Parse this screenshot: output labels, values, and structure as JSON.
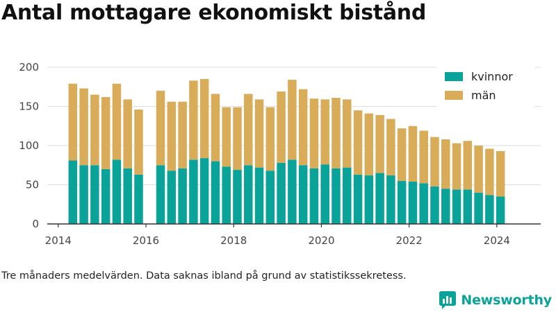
{
  "page": {
    "title": "Antal mottagare ekonomiskt bistånd",
    "caption": "Tre månaders medelvärden. Data saknas ibland på grund av statistikssekretess.",
    "brand": "Newsworthy"
  },
  "colors": {
    "kvinnor": "#0aa39a",
    "man": "#d9ac5a",
    "grid": "#dddddd",
    "axis": "#333333",
    "brand": "#0aa39a"
  },
  "icons": {
    "brand_logo": "bar-chart-speech-bubble-icon"
  },
  "chart_data": {
    "type": "bar",
    "stacked": true,
    "title": "Antal mottagare ekonomiskt bistånd",
    "xlabel": "",
    "ylabel": "",
    "ylim": [
      0,
      200
    ],
    "xlim": [
      "2013-10",
      "2025-01"
    ],
    "yticks": [
      0,
      50,
      100,
      150,
      200
    ],
    "xticks": [
      "2014",
      "2016",
      "2018",
      "2020",
      "2022",
      "2024"
    ],
    "grid": true,
    "legend_position": "top-right",
    "categories": [
      "2014-05",
      "2014-08",
      "2014-11",
      "2015-02",
      "2015-05",
      "2015-08",
      "2015-11",
      "2016-05",
      "2016-08",
      "2016-11",
      "2017-02",
      "2017-05",
      "2017-08",
      "2017-11",
      "2018-02",
      "2018-05",
      "2018-08",
      "2018-11",
      "2019-02",
      "2019-05",
      "2019-08",
      "2019-11",
      "2020-02",
      "2020-05",
      "2020-08",
      "2020-11",
      "2021-02",
      "2021-05",
      "2021-08",
      "2021-11",
      "2022-02",
      "2022-05",
      "2022-08",
      "2022-11",
      "2023-02",
      "2023-05",
      "2023-08",
      "2023-11",
      "2024-02"
    ],
    "series": [
      {
        "name": "kvinnor",
        "values": [
          81,
          75,
          75,
          70,
          82,
          71,
          63,
          75,
          68,
          71,
          82,
          84,
          80,
          73,
          69,
          75,
          72,
          68,
          78,
          82,
          75,
          71,
          76,
          71,
          72,
          63,
          62,
          65,
          62,
          55,
          54,
          52,
          48,
          45,
          44,
          44,
          40,
          37,
          35
        ]
      },
      {
        "name": "män",
        "values": [
          98,
          98,
          90,
          92,
          97,
          88,
          83,
          95,
          88,
          85,
          101,
          101,
          86,
          76,
          80,
          91,
          87,
          81,
          91,
          102,
          97,
          89,
          83,
          90,
          87,
          82,
          79,
          74,
          72,
          67,
          71,
          67,
          63,
          63,
          59,
          62,
          60,
          59,
          58
        ]
      }
    ]
  }
}
